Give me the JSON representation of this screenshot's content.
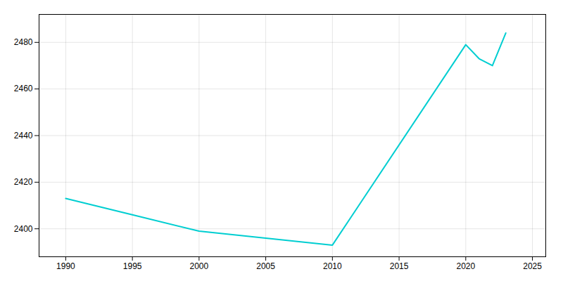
{
  "chart_data": {
    "type": "line",
    "x": [
      1990,
      1995,
      2000,
      2005,
      2010,
      2020,
      2021,
      2022,
      2023
    ],
    "values": [
      2413,
      2406,
      2399,
      2396,
      2393,
      2479,
      2473,
      2470,
      2484
    ],
    "color": "#00CED1",
    "xlim": [
      1988,
      2026
    ],
    "xticks": [
      1990,
      1995,
      2000,
      2005,
      2010,
      2015,
      2020,
      2025
    ],
    "ylim": [
      2388,
      2492
    ],
    "yticks": [
      2400,
      2420,
      2440,
      2460,
      2480
    ],
    "grid": true
  }
}
